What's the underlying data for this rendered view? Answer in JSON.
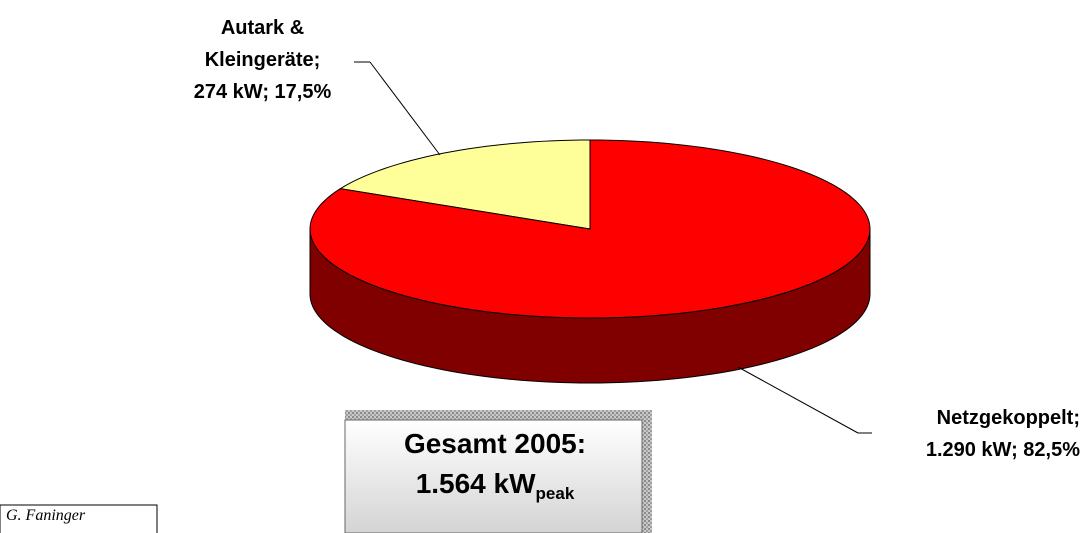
{
  "chart_data": {
    "type": "pie3d",
    "categories": [
      "Autark & Kleingeräte;",
      "Netzgekoppelt;"
    ],
    "values": [
      274,
      1290
    ],
    "value_labels": [
      "274 kW; 17,5%",
      "1.290 kW; 82,5%"
    ],
    "colors": [
      "#ffff99",
      "#ff0000"
    ],
    "side_colors": [
      "#a0a060",
      "#800000"
    ],
    "annotation": {
      "line1": "Gesamt 2005:",
      "total": "1.564 kW",
      "subscript": "peak"
    },
    "credit": "G. Faninger"
  }
}
